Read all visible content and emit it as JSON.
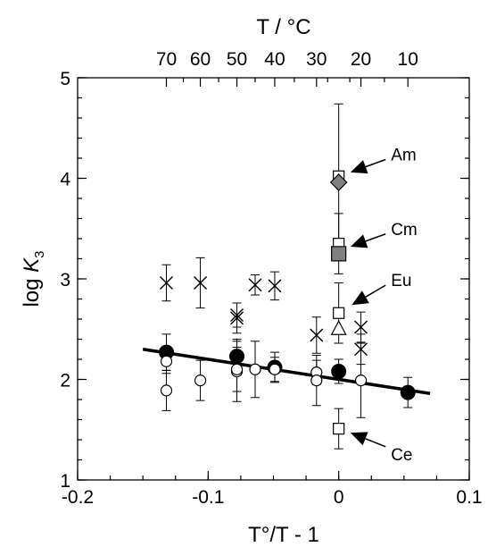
{
  "chart_data": {
    "type": "scatter",
    "title": "",
    "xlabel": "T°/T - 1",
    "ylabel_main": "log ",
    "ylabel_italic": "K",
    "ylabel_sub": "3",
    "x2label": "T / °C",
    "xlim": [
      -0.2,
      0.1
    ],
    "ylim": [
      1,
      5
    ],
    "x_ticks": [
      -0.2,
      -0.1,
      0,
      0.1
    ],
    "x_tick_labels": [
      "-0.2",
      "-0.1",
      "0",
      "0.1"
    ],
    "y_ticks": [
      1,
      2,
      3,
      4,
      5
    ],
    "y_tick_labels": [
      "1",
      "2",
      "3",
      "4",
      "5"
    ],
    "x2_ticks": [
      {
        "x": -0.132,
        "label": "70"
      },
      {
        "x": -0.106,
        "label": "60"
      },
      {
        "x": -0.078,
        "label": "50"
      },
      {
        "x": -0.049,
        "label": "40"
      },
      {
        "x": -0.017,
        "label": "30"
      },
      {
        "x": 0.017,
        "label": "20"
      },
      {
        "x": 0.053,
        "label": "10"
      }
    ],
    "x2_minor_ticks": [
      -0.119,
      -0.092,
      -0.064,
      -0.034,
      -0.0085,
      0.0085,
      0.035
    ],
    "grid": false,
    "series": [
      {
        "marker": "filled-circle",
        "points": [
          {
            "x": -0.132,
            "y": 2.27,
            "err": 0.18
          },
          {
            "x": -0.078,
            "y": 2.23,
            "err": 0.17
          },
          {
            "x": -0.049,
            "y": 2.12,
            "err": 0.15
          },
          {
            "x": 0.0,
            "y": 2.08,
            "err": 0.12
          },
          {
            "x": 0.053,
            "y": 1.87,
            "err": 0.15
          }
        ]
      },
      {
        "marker": "open-circle",
        "points": [
          {
            "x": -0.132,
            "y": 1.89,
            "err": 0.2
          },
          {
            "x": -0.132,
            "y": 2.18,
            "err": 0.12
          },
          {
            "x": -0.106,
            "y": 1.99,
            "err": 0.2
          },
          {
            "x": -0.078,
            "y": 2.08,
            "err": 0.3
          },
          {
            "x": -0.078,
            "y": 2.1,
            "err": 0.22
          },
          {
            "x": -0.064,
            "y": 2.1,
            "err": 0.28
          },
          {
            "x": -0.049,
            "y": 2.1,
            "err": 0.12
          },
          {
            "x": -0.017,
            "y": 2.07,
            "err": 0.12
          },
          {
            "x": -0.017,
            "y": 1.99,
            "err": 0.25
          },
          {
            "x": 0.017,
            "y": 1.99,
            "err": 0.37
          }
        ]
      },
      {
        "marker": "cross",
        "points": [
          {
            "x": -0.132,
            "y": 2.96,
            "err": 0.18
          },
          {
            "x": -0.106,
            "y": 2.96,
            "err": 0.25
          },
          {
            "x": -0.078,
            "y": 2.61,
            "err": 0.15
          },
          {
            "x": -0.078,
            "y": 2.64,
            "err": 0.12
          },
          {
            "x": -0.064,
            "y": 2.94,
            "err": 0.1
          },
          {
            "x": -0.049,
            "y": 2.93,
            "err": 0.14
          },
          {
            "x": -0.017,
            "y": 2.44,
            "err": 0.18
          },
          {
            "x": 0.017,
            "y": 2.52,
            "err": 0.15
          },
          {
            "x": 0.017,
            "y": 2.3,
            "err": 0.15
          }
        ]
      },
      {
        "marker": "open-square",
        "points": [
          {
            "x": 0.0,
            "y": 4.02,
            "err": 0.72
          },
          {
            "x": 0.0,
            "y": 3.35,
            "err": 0.3
          },
          {
            "x": 0.0,
            "y": 2.66,
            "err": 0.3
          },
          {
            "x": 0.0,
            "y": 1.51,
            "err": 0.2
          }
        ]
      },
      {
        "marker": "gray-diamond",
        "points": [
          {
            "x": 0.0,
            "y": 3.96,
            "err": 0
          }
        ]
      },
      {
        "marker": "gray-square",
        "points": [
          {
            "x": 0.0,
            "y": 3.25,
            "err": 0
          }
        ]
      },
      {
        "marker": "open-triangle",
        "points": [
          {
            "x": 0.0,
            "y": 2.5,
            "err": 0
          }
        ]
      }
    ],
    "fit_line": {
      "x": [
        -0.15,
        0.07
      ],
      "y": [
        2.3,
        1.86
      ]
    },
    "annotations": [
      {
        "label": "Am",
        "text_x": 0.04,
        "text_y": 4.24,
        "arrow_to_x": 0.009,
        "arrow_to_y": 4.06
      },
      {
        "label": "Cm",
        "text_x": 0.04,
        "text_y": 3.5,
        "arrow_to_x": 0.009,
        "arrow_to_y": 3.32
      },
      {
        "label": "Eu",
        "text_x": 0.04,
        "text_y": 2.99,
        "arrow_to_x": 0.01,
        "arrow_to_y": 2.74
      },
      {
        "label": "Ce",
        "text_x": 0.04,
        "text_y": 1.26,
        "arrow_to_x": 0.009,
        "arrow_to_y": 1.47
      }
    ]
  }
}
